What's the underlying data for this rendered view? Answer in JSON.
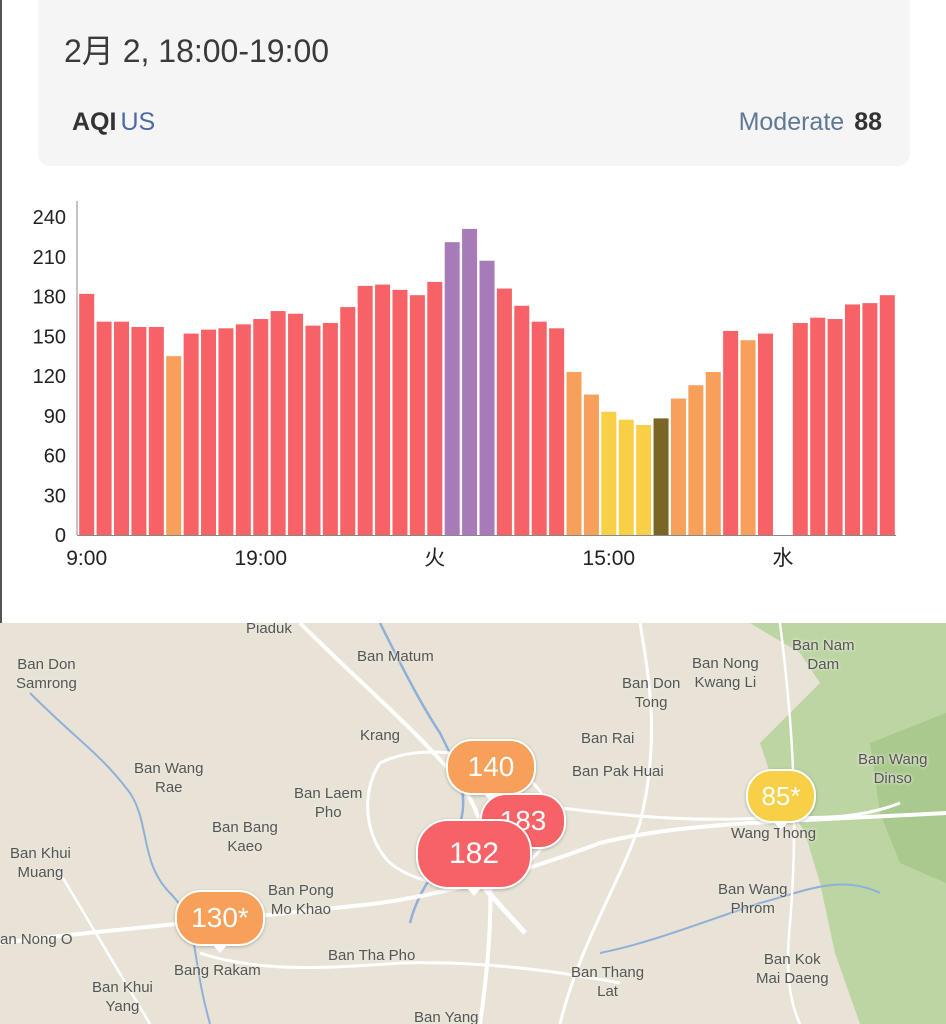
{
  "header": {
    "time_range": "2月 2, 18:00-19:00",
    "aqi_label": "AQI",
    "aqi_unit": "US",
    "status": "Moderate",
    "value": "88"
  },
  "colors": {
    "unhealthy": "#f76266",
    "sensitive": "#f7a05a",
    "moderate": "#f7d048",
    "very_unhealthy": "#a77ab8",
    "selected": "#7a6524"
  },
  "chart_data": {
    "type": "bar",
    "title": "",
    "xlabel": "",
    "ylabel": "",
    "ylim": [
      0,
      240
    ],
    "yticks": [
      "0",
      "30",
      "60",
      "90",
      "120",
      "150",
      "180",
      "210",
      "240"
    ],
    "xticks": [
      {
        "index": 0,
        "label": "9:00"
      },
      {
        "index": 10,
        "label": "19:00"
      },
      {
        "index": 20,
        "label": "火"
      },
      {
        "index": 30,
        "label": "15:00"
      },
      {
        "index": 40,
        "label": "水"
      }
    ],
    "values": [
      182,
      161,
      161,
      157,
      157,
      135,
      152,
      155,
      156,
      159,
      163,
      169,
      167,
      158,
      160,
      172,
      188,
      189,
      185,
      181,
      191,
      221,
      231,
      207,
      186,
      173,
      161,
      156,
      123,
      106,
      93,
      87,
      83,
      88,
      103,
      113,
      123,
      154,
      147,
      152,
      null,
      160,
      164,
      163,
      174,
      175,
      181
    ],
    "categories": [
      "unhealthy",
      "unhealthy",
      "unhealthy",
      "unhealthy",
      "unhealthy",
      "sensitive",
      "unhealthy",
      "unhealthy",
      "unhealthy",
      "unhealthy",
      "unhealthy",
      "unhealthy",
      "unhealthy",
      "unhealthy",
      "unhealthy",
      "unhealthy",
      "unhealthy",
      "unhealthy",
      "unhealthy",
      "unhealthy",
      "unhealthy",
      "very_unhealthy",
      "very_unhealthy",
      "very_unhealthy",
      "unhealthy",
      "unhealthy",
      "unhealthy",
      "unhealthy",
      "sensitive",
      "sensitive",
      "moderate",
      "moderate",
      "moderate",
      "selected",
      "sensitive",
      "sensitive",
      "sensitive",
      "unhealthy",
      "sensitive",
      "unhealthy",
      "none",
      "unhealthy",
      "unhealthy",
      "unhealthy",
      "unhealthy",
      "unhealthy",
      "unhealthy"
    ],
    "grid": false,
    "legend": "none"
  },
  "map": {
    "places": [
      "Piaduk",
      "Ban Matum",
      "Ban Don\nSamrong",
      "Ban Don\nTong",
      "Ban Nong\nKwang Li",
      "Ban Nam\nDam",
      "Krang",
      "Ban Rai",
      "Ban Wang\nRae",
      "Ban Pak Huai",
      "Ban Laem\nPho",
      "Ban Wang\nDinso",
      "Ban Bang\nKaeo",
      "Wang Thong",
      "Ban Khui\nMuang",
      "Ban Pong\nMo Khao",
      "Ban Wang\nPhrom",
      "an Nong O",
      "Ban Tha Pho",
      "Bang Rakam",
      "Ban Kok\nMai Daeng",
      "Ban Khui\nYang",
      "Ban Thang\nLat",
      "Ban Yang"
    ],
    "markers": [
      {
        "label": "140",
        "color": "#f7a05a"
      },
      {
        "label": "183",
        "color": "#f76266"
      },
      {
        "label": "182",
        "color": "#f76266"
      },
      {
        "label": "85*",
        "color": "#f7d048"
      },
      {
        "label": "130*",
        "color": "#f7a05a"
      }
    ]
  }
}
